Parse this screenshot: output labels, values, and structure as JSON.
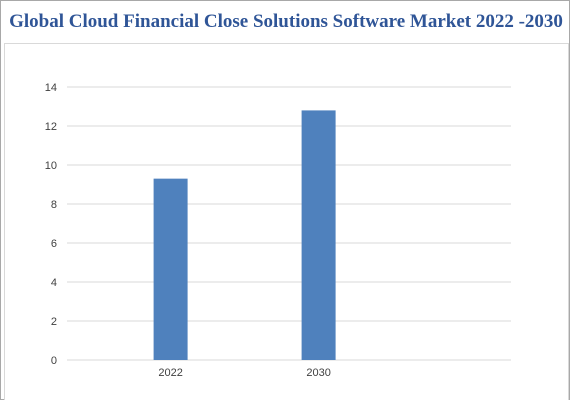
{
  "title": "Global Cloud Financial Close Solutions Software Market 2022 -2030",
  "chart_data": {
    "type": "bar",
    "title": "Global Cloud Financial Close Solutions Software Market 2022 -2030",
    "xlabel": "",
    "ylabel": "",
    "categories": [
      "2022",
      "2030"
    ],
    "values": [
      9.3,
      12.8
    ],
    "ylim": [
      0,
      14
    ],
    "yticks": [
      0,
      2,
      4,
      6,
      8,
      10,
      12,
      14
    ],
    "ytick_labels": [
      "0",
      "2",
      "4",
      "6",
      "8",
      "10",
      "12",
      "14"
    ],
    "grid": true,
    "legend": "none",
    "bar_color": "#4f81bd",
    "grid_color": "#d9d9d9"
  }
}
